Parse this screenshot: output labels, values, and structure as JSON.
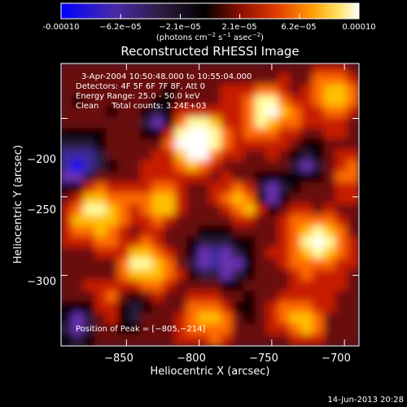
{
  "colorbar": {
    "tick_labels": [
      "-0.00010",
      "−6.2e−05",
      "−2.1e−05",
      "2.1e−05",
      "6.2e−05",
      "0.00010"
    ],
    "min": -0.0001,
    "max": 0.0001,
    "unit_prefix": "(photons cm",
    "unit_exp1": "−2",
    "unit_mid": " s",
    "unit_exp2": "−1",
    "unit_mid2": " asec",
    "unit_exp3": "−2",
    "unit_suffix": ")"
  },
  "chart_data": {
    "type": "heatmap",
    "title": "Reconstructed RHESSI Image",
    "xlabel": "Heliocentric X (arcsec)",
    "ylabel": "Heliocentric Y (arcsec)",
    "xlim": [
      -895,
      -690
    ],
    "ylim": [
      -345,
      -165
    ],
    "x_ticks": [
      -850,
      -800,
      -750,
      -700
    ],
    "y_ticks": [
      -200,
      -250,
      -300
    ],
    "x_tick_labels": [
      "−850",
      "−800",
      "−750",
      "−700"
    ],
    "y_tick_labels": [
      "−200",
      "−250",
      "−300"
    ],
    "info_lines": [
      "3-Apr-2004 10:50:48.000 to 10:55:04.000",
      "Detectors: 4F 5F 6F 7F 8F, Att 0",
      "Energy Range: 25.0 - 50.0 keV",
      "Clean     Total counts: 3.24E+03"
    ],
    "peak_label": "Position of Peak = [−805,−214]",
    "peak": [
      -805,
      -214
    ],
    "colormap": [
      "#0000ff",
      "#3f2a9e",
      "#6b32b2",
      "#2a1a3a",
      "#000000",
      "#6a0d0d",
      "#c81e00",
      "#ff6a00",
      "#ffc000",
      "#ffffa0",
      "#ffffff"
    ]
  },
  "timestamp": "14-Jun-2013 20:28"
}
